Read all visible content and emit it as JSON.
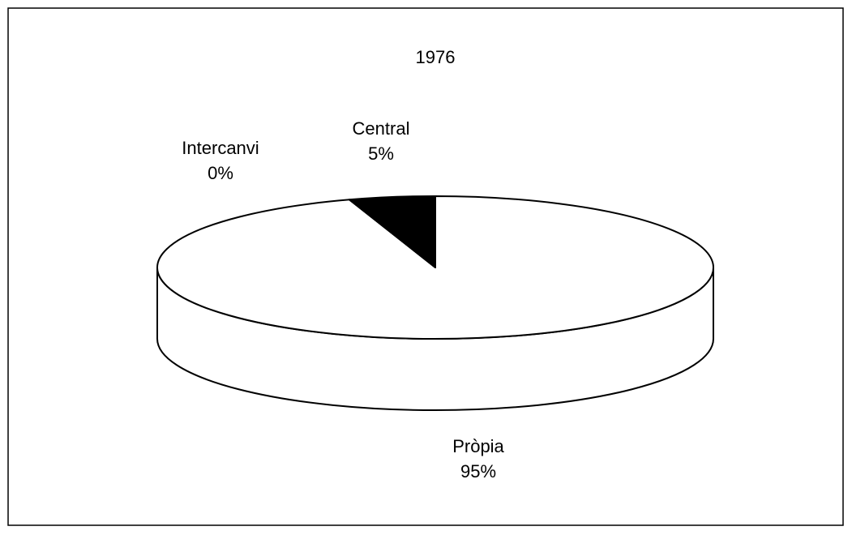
{
  "chart_data": {
    "type": "pie3d",
    "title": "1976",
    "categories": [
      "Pròpia",
      "Intercanvi",
      "Central"
    ],
    "values": [
      95,
      0,
      5
    ],
    "value_labels": [
      "95%",
      "0%",
      "5%"
    ],
    "colors": [
      "#ffffff",
      "#ffffff",
      "#000000"
    ]
  }
}
